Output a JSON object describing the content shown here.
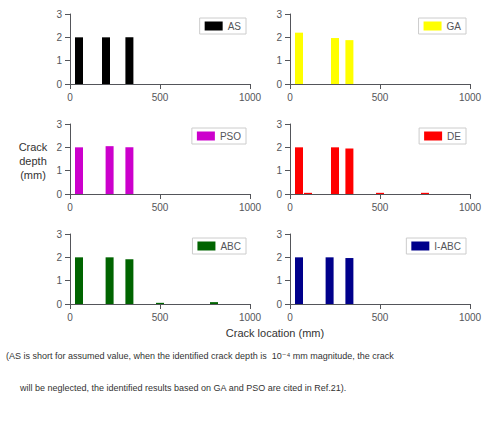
{
  "chart_data": [
    {
      "type": "bar",
      "x": [
        50,
        200,
        330
      ],
      "series": [
        {
          "name": "AS",
          "color": "#000000",
          "values": [
            2.0,
            2.0,
            2.0
          ]
        }
      ],
      "xlim": [
        0,
        1000
      ],
      "xticks": [
        0,
        500,
        1000
      ],
      "ylim": [
        0,
        3
      ],
      "yticks": [
        0,
        1,
        2,
        3
      ],
      "grid": false,
      "legend": "upper right"
    },
    {
      "type": "bar",
      "x": [
        50,
        250,
        330
      ],
      "series": [
        {
          "name": "GA",
          "color": "#ffff00",
          "values": [
            2.2,
            1.97,
            1.88
          ]
        }
      ],
      "xlim": [
        0,
        1000
      ],
      "xticks": [
        0,
        500,
        1000
      ],
      "ylim": [
        0,
        3
      ],
      "yticks": [
        0,
        1,
        2,
        3
      ],
      "grid": false,
      "legend": "upper right"
    },
    {
      "type": "bar",
      "x": [
        50,
        220,
        330
      ],
      "series": [
        {
          "name": "PSO",
          "color": "#cc00cc",
          "values": [
            2.0,
            2.05,
            2.0
          ]
        }
      ],
      "xlim": [
        0,
        1000
      ],
      "xticks": [
        0,
        500,
        1000
      ],
      "ylim": [
        0,
        3
      ],
      "yticks": [
        0,
        1,
        2,
        3
      ],
      "grid": false,
      "legend": "upper right"
    },
    {
      "type": "bar",
      "x": [
        50,
        250,
        330,
        100,
        500,
        750
      ],
      "series": [
        {
          "name": "DE",
          "color": "#ff0000",
          "values": [
            2.0,
            2.0,
            1.95,
            0.05,
            0.05,
            0.05
          ]
        }
      ],
      "xlim": [
        0,
        1000
      ],
      "xticks": [
        0,
        500,
        1000
      ],
      "ylim": [
        0,
        3
      ],
      "yticks": [
        0,
        1,
        2,
        3
      ],
      "grid": false,
      "legend": "upper right"
    },
    {
      "type": "bar",
      "x": [
        50,
        220,
        330,
        500,
        800
      ],
      "series": [
        {
          "name": "ABC",
          "color": "#006400",
          "values": [
            2.0,
            2.0,
            1.92,
            0.05,
            0.08
          ]
        }
      ],
      "xlim": [
        0,
        1000
      ],
      "xticks": [
        0,
        500,
        1000
      ],
      "ylim": [
        0,
        3
      ],
      "yticks": [
        0,
        1,
        2,
        3
      ],
      "grid": false,
      "legend": "upper right"
    },
    {
      "type": "bar",
      "x": [
        50,
        220,
        330
      ],
      "series": [
        {
          "name": "I-ABC",
          "color": "#00008b",
          "values": [
            2.0,
            2.0,
            1.97
          ]
        }
      ],
      "xlim": [
        0,
        1000
      ],
      "xticks": [
        0,
        500,
        1000
      ],
      "ylim": [
        0,
        3
      ],
      "yticks": [
        0,
        1,
        2,
        3
      ],
      "grid": false,
      "legend": "upper right"
    }
  ],
  "xlabel": "Crack location (mm)",
  "ylabel": "Crack\ndepth\n(mm)",
  "annotations": [
    "(AS is short for assumed value, when the identified crack depth is  10⁻⁴ mm magnitude, the crack",
    "will be neglected, the identified results based on GA and PSO are cited in Ref.21)."
  ]
}
